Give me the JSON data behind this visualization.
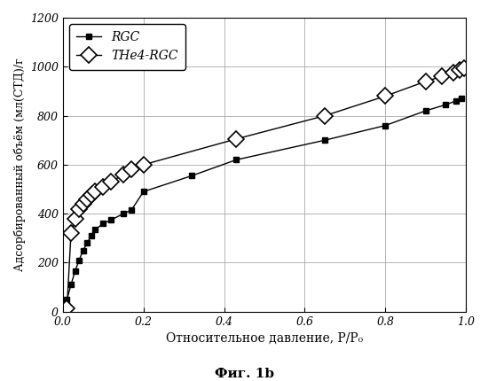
{
  "RGC_x": [
    0.01,
    0.02,
    0.03,
    0.04,
    0.05,
    0.06,
    0.07,
    0.08,
    0.1,
    0.12,
    0.15,
    0.17,
    0.2,
    0.32,
    0.43,
    0.65,
    0.8,
    0.9,
    0.95,
    0.975,
    0.99
  ],
  "RGC_y": [
    50,
    110,
    165,
    210,
    250,
    280,
    310,
    335,
    360,
    375,
    400,
    415,
    490,
    555,
    620,
    700,
    760,
    820,
    845,
    860,
    870
  ],
  "THe4_x": [
    0.01,
    0.02,
    0.03,
    0.04,
    0.05,
    0.06,
    0.07,
    0.08,
    0.1,
    0.12,
    0.15,
    0.17,
    0.2,
    0.43,
    0.65,
    0.8,
    0.9,
    0.94,
    0.97,
    0.985,
    0.995
  ],
  "THe4_y": [
    15,
    320,
    380,
    420,
    440,
    460,
    475,
    490,
    510,
    530,
    560,
    580,
    600,
    705,
    800,
    880,
    940,
    960,
    975,
    985,
    995
  ],
  "xlabel": "Относительное давление, P/P₀",
  "ylabel": "Адсорбированный объём (мл(СТД)/г",
  "figcaption": "Фиг. 1b",
  "legend_RGC": "RGC",
  "legend_THe4": "THe4-RGC",
  "xlim": [
    0.0,
    1.0
  ],
  "ylim": [
    0,
    1200
  ],
  "ytick_values": [
    0,
    200,
    400,
    600,
    800,
    1000,
    1200
  ],
  "ytick_labels": [
    "0",
    "200",
    "400",
    "600",
    "800",
    "1000",
    "1200"
  ],
  "xtick_values": [
    0.0,
    0.2,
    0.4,
    0.6,
    0.8,
    1.0
  ],
  "xtick_labels": [
    "0.0",
    "0.2",
    "0.4",
    "0.6",
    "0.8",
    "1.0"
  ],
  "background_color": "#ffffff",
  "line_color": "#000000",
  "grid_color": "#aaaaaa"
}
